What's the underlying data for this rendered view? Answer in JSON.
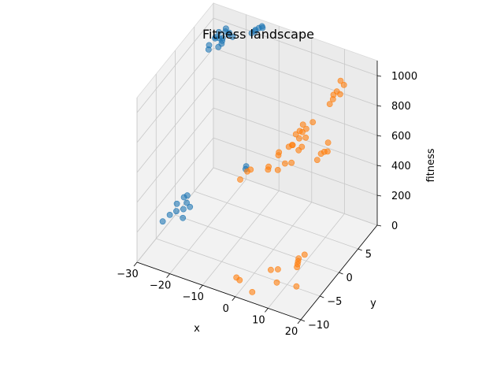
{
  "chart_data": {
    "type": "scatter3d",
    "title": "Fitness landscape",
    "xlabel": "x",
    "ylabel": "y",
    "zlabel": "fitness",
    "xlim": [
      -30,
      20
    ],
    "ylim": [
      -10,
      10
    ],
    "zlim": [
      0,
      1100
    ],
    "x_ticks": [
      -30,
      -20,
      -10,
      0,
      10,
      20
    ],
    "y_ticks": [
      -10,
      -5,
      0,
      5
    ],
    "z_ticks": [
      0,
      200,
      400,
      600,
      800,
      1000
    ],
    "x_tick_labels": [
      "−30",
      "−20",
      "−10",
      "0",
      "10",
      "20"
    ],
    "y_tick_labels": [
      "−10",
      "−5",
      "0",
      "5"
    ],
    "z_tick_labels": [
      "0",
      "200",
      "400",
      "600",
      "800",
      "1000"
    ],
    "grid": true,
    "series": [
      {
        "color": "#1f77b4",
        "points": [
          [
            -25,
            8,
            950
          ],
          [
            -26,
            7,
            990
          ],
          [
            -24,
            9,
            980
          ],
          [
            -27,
            8,
            960
          ],
          [
            -25,
            9,
            1000
          ],
          [
            -26,
            9,
            930
          ],
          [
            -24,
            7,
            970
          ],
          [
            -28,
            7,
            900
          ],
          [
            -23,
            8,
            1010
          ],
          [
            -25,
            7,
            940
          ],
          [
            -27,
            9,
            920
          ],
          [
            -24,
            8,
            1020
          ],
          [
            -29,
            8,
            890
          ],
          [
            -26,
            8,
            1000
          ],
          [
            -23,
            9,
            960
          ],
          [
            -15,
            9,
            1080
          ],
          [
            -16,
            9,
            1060
          ],
          [
            -14,
            9,
            1100
          ],
          [
            -15,
            8,
            1090
          ],
          [
            -16,
            8,
            1070
          ],
          [
            -15,
            10,
            1050
          ],
          [
            -24,
            -3,
            180
          ],
          [
            -25,
            -2,
            220
          ],
          [
            -26,
            -3,
            200
          ],
          [
            -23,
            -4,
            160
          ],
          [
            -22,
            -3,
            210
          ],
          [
            -27,
            -4,
            150
          ],
          [
            -25,
            -4,
            190
          ],
          [
            -24,
            -2,
            240
          ],
          [
            -28,
            -5,
            130
          ],
          [
            -23,
            -3,
            230
          ],
          [
            -12,
            3,
            350
          ],
          [
            -13,
            4,
            330
          ]
        ]
      },
      {
        "color": "#ff7f0e",
        "points": [
          [
            2,
            5,
            600
          ],
          [
            3,
            6,
            640
          ],
          [
            1,
            4,
            580
          ],
          [
            4,
            5,
            620
          ],
          [
            2,
            6,
            660
          ],
          [
            3,
            4,
            560
          ],
          [
            0,
            5,
            540
          ],
          [
            5,
            6,
            700
          ],
          [
            1,
            6,
            610
          ],
          [
            4,
            4,
            590
          ],
          [
            -2,
            3,
            520
          ],
          [
            -3,
            4,
            500
          ],
          [
            -1,
            2,
            460
          ],
          [
            0,
            3,
            480
          ],
          [
            -4,
            2,
            440
          ],
          [
            -5,
            3,
            420
          ],
          [
            2,
            3,
            500
          ],
          [
            3,
            5,
            650
          ],
          [
            1,
            5,
            620
          ],
          [
            0,
            4,
            560
          ],
          [
            10,
            8,
            880
          ],
          [
            11,
            9,
            900
          ],
          [
            9,
            8,
            850
          ],
          [
            10,
            9,
            920
          ],
          [
            11,
            8,
            870
          ],
          [
            9,
            7,
            820
          ],
          [
            10,
            7,
            860
          ],
          [
            12,
            3,
            650
          ],
          [
            11,
            2,
            620
          ],
          [
            12,
            4,
            680
          ],
          [
            13,
            3,
            660
          ],
          [
            11,
            3,
            630
          ],
          [
            -8,
            0,
            460
          ],
          [
            -9,
            -1,
            430
          ],
          [
            -7,
            0,
            480
          ],
          [
            12,
            -4,
            120
          ],
          [
            13,
            -3,
            160
          ],
          [
            11,
            -3,
            100
          ],
          [
            10,
            -2,
            80
          ],
          [
            13,
            -5,
            140
          ],
          [
            5,
            -5,
            60
          ],
          [
            6,
            -4,
            40
          ],
          [
            8,
            -6,
            30
          ],
          [
            14,
            -6,
            50
          ],
          [
            -2,
            -8,
            50
          ],
          [
            -1,
            -8,
            40
          ],
          [
            4,
            -9,
            30
          ]
        ]
      }
    ]
  }
}
